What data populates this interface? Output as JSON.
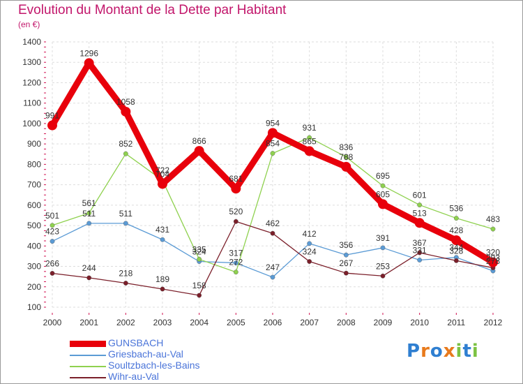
{
  "title": "Evolution du Montant de la Dette par Habitant",
  "subtitle": "(en €)",
  "logo_text": "Proxiti",
  "chart_data": {
    "type": "line",
    "title": "Evolution du Montant de la Dette par Habitant",
    "subtitle": "(en €)",
    "xlabel": "",
    "ylabel": "",
    "x": [
      2000,
      2001,
      2002,
      2003,
      2004,
      2005,
      2006,
      2007,
      2008,
      2009,
      2010,
      2011,
      2012
    ],
    "ylim": [
      100,
      1400
    ],
    "yticks": [
      100,
      200,
      300,
      400,
      500,
      600,
      700,
      800,
      900,
      1000,
      1100,
      1200,
      1300,
      1400
    ],
    "grid": true,
    "legend_position": "bottom-left",
    "series": [
      {
        "name": "GUNSBACH",
        "color": "#e8000b",
        "values": [
          991,
          1296,
          1058,
          704,
          866,
          681,
          954,
          865,
          788,
          605,
          513,
          428,
          320
        ],
        "labels": [
          "991",
          "1296",
          "1058",
          "704",
          "866",
          "681",
          "954",
          "865",
          "788",
          "605",
          "513",
          "428",
          "320"
        ]
      },
      {
        "name": "Griesbach-au-Val",
        "color": "#5b9bd5",
        "values": [
          423,
          511,
          511,
          431,
          324,
          317,
          247,
          412,
          356,
          391,
          331,
          344,
          278
        ],
        "labels": [
          "423",
          "511",
          "511",
          "431",
          "324",
          "317",
          "247",
          "412",
          "356",
          "391",
          "331",
          "344",
          "278"
        ]
      },
      {
        "name": "Soultzbach-les-Bains",
        "color": "#8fd14f",
        "values": [
          501,
          561,
          852,
          722,
          335,
          272,
          854,
          931,
          836,
          695,
          601,
          536,
          483
        ],
        "labels": [
          "501",
          "561",
          "852",
          "722",
          "335",
          "272",
          "854",
          "931",
          "836",
          "695",
          "601",
          "536",
          "483"
        ]
      },
      {
        "name": "Wihr-au-Val",
        "color": "#7b1f2a",
        "values": [
          266,
          244,
          218,
          189,
          158,
          520,
          462,
          324,
          267,
          253,
          367,
          328,
          293
        ],
        "labels": [
          "266",
          "244",
          "218",
          "189",
          "158",
          "520",
          "462",
          "324",
          "267",
          "253",
          "367",
          "328",
          "293"
        ]
      }
    ]
  }
}
